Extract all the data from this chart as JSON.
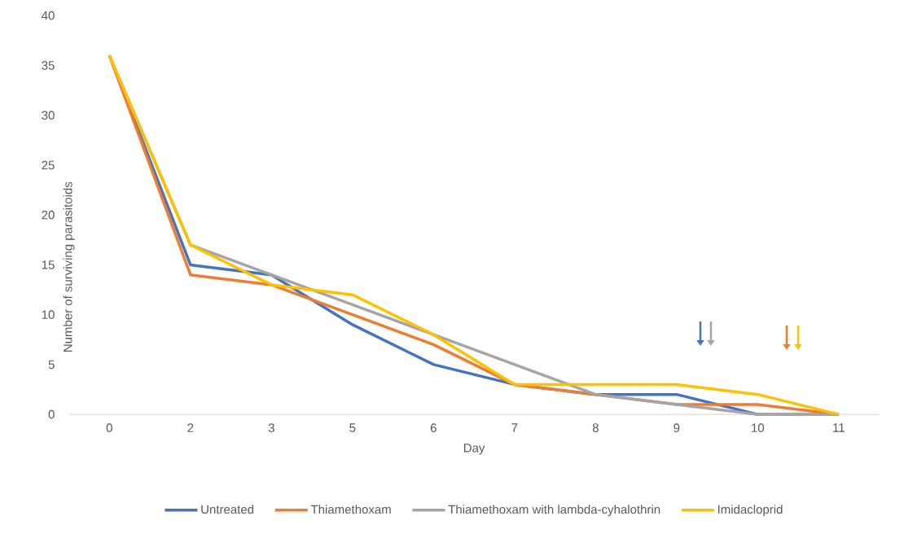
{
  "chart_data": {
    "type": "line",
    "xlabel": "Day",
    "ylabel": "Number of surviving parasitoids",
    "categories": [
      "0",
      "2",
      "3",
      "5",
      "6",
      "7",
      "8",
      "9",
      "10",
      "11"
    ],
    "series": [
      {
        "name": "Untreated",
        "color": "#4472c4",
        "values": [
          36,
          15,
          14,
          9,
          5,
          3,
          2,
          2,
          0,
          0
        ]
      },
      {
        "name": "Thiamethoxam",
        "color": "#ed7d31",
        "values": [
          36,
          14,
          13,
          10,
          7,
          3,
          2,
          1,
          1,
          0
        ]
      },
      {
        "name": "Thiamethoxam with lambda-cyhalothrin",
        "color": "#a5a5a5",
        "values": [
          36,
          17,
          14,
          11,
          8,
          5,
          2,
          1,
          0,
          0
        ]
      },
      {
        "name": "Imidacloprid",
        "color": "#ffc000",
        "values": [
          36,
          17,
          13,
          12,
          8,
          3,
          3,
          3,
          2,
          0
        ]
      }
    ],
    "ylim": [
      0,
      40
    ],
    "yticks": [
      0,
      5,
      10,
      15,
      20,
      25,
      30,
      35,
      40
    ],
    "grid": false,
    "legend": "bottom",
    "marker": "none",
    "line_style": "solid"
  }
}
